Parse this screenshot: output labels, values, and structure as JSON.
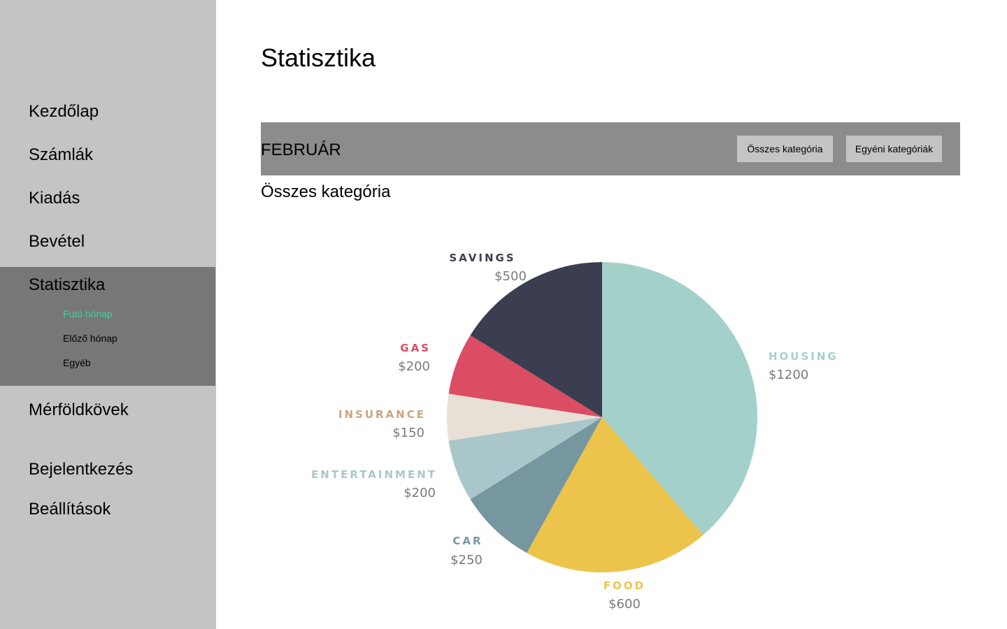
{
  "sidebar": {
    "items": [
      {
        "label": "Kezdőlap"
      },
      {
        "label": "Számlák"
      },
      {
        "label": "Kiadás"
      },
      {
        "label": "Bevétel"
      },
      {
        "label": "Statisztika"
      },
      {
        "label": "Mérföldkövek"
      },
      {
        "label": "Bejelentkezés"
      },
      {
        "label": "Beállítások"
      }
    ],
    "subitems": [
      {
        "label": "Futó hónap"
      },
      {
        "label": "Előző hónap"
      },
      {
        "label": "Egyéb"
      }
    ],
    "active_color": "#3fd39a"
  },
  "main": {
    "title": "Statisztika",
    "month": "FEBRUÁR",
    "buttons": {
      "all_categories": "Összes kategória",
      "custom_categories": "Egyéni kategóriák"
    },
    "section_title": "Összes kategória"
  },
  "chart_data": {
    "type": "pie",
    "slices": [
      {
        "label": "HOUSING",
        "value": 1200,
        "value_label": "$1200",
        "color": "#a3d1c9"
      },
      {
        "label": "FOOD",
        "value": 600,
        "value_label": "$600",
        "color": "#ecc44c"
      },
      {
        "label": "CAR",
        "value": 250,
        "value_label": "$250",
        "color": "#76979f"
      },
      {
        "label": "ENTERTAINMENT",
        "value": 200,
        "value_label": "$200",
        "color": "#a9c6cb"
      },
      {
        "label": "INSURANCE",
        "value": 150,
        "value_label": "$150",
        "color": "#e8dfd6"
      },
      {
        "label": "GAS",
        "value": 200,
        "value_label": "$200",
        "color": "#db4d62"
      },
      {
        "label": "SAVINGS",
        "value": 500,
        "value_label": "$500",
        "color": "#3b3d51"
      }
    ],
    "label_colors": {
      "HOUSING": "#a3d1c9",
      "FOOD": "#ecc44c",
      "CAR": "#76979f",
      "ENTERTAINMENT": "#a9c6cb",
      "INSURANCE": "#c9a57f",
      "GAS": "#db4d62",
      "SAVINGS": "#3b3d51"
    }
  }
}
